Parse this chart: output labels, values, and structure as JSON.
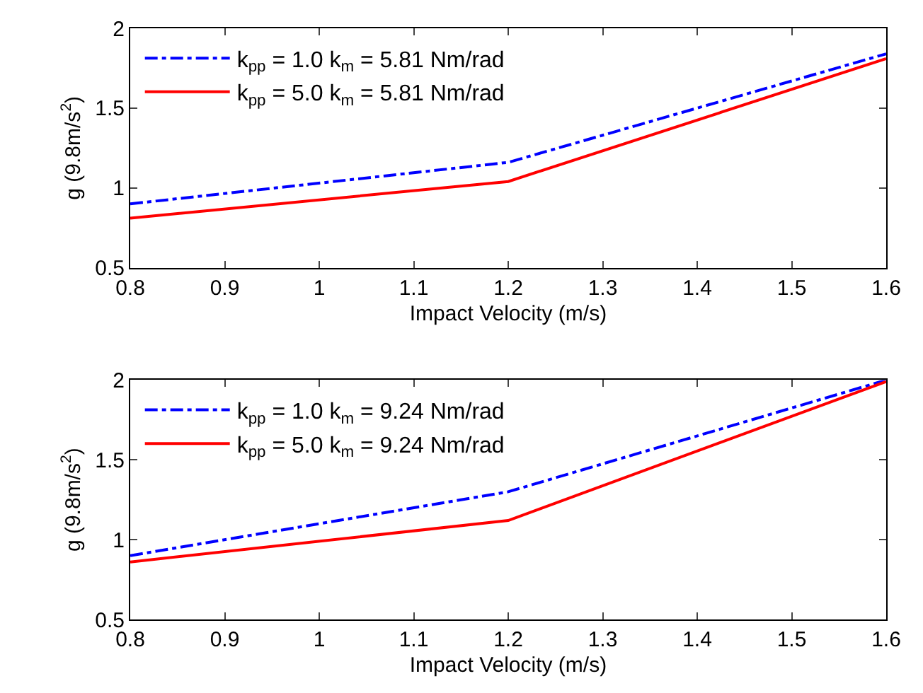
{
  "chart_data": [
    {
      "type": "line",
      "xlabel": "Impact Velocity (m/s)",
      "ylabel": "g (9.8m/s$^{2}$)",
      "x": [
        0.8,
        1.2,
        1.6
      ],
      "xlim": [
        0.8,
        1.6
      ],
      "xticks": [
        0.8,
        0.9,
        1,
        1.1,
        1.2,
        1.3,
        1.4,
        1.5,
        1.6
      ],
      "ylim": [
        0.5,
        2
      ],
      "yticks": [
        0.5,
        1,
        1.5,
        2
      ],
      "grid": false,
      "legend": "top left",
      "marker": "none",
      "series": [
        {
          "name": "k$_{pp}$ = 1.0 k$_{m}$ = 5.81 Nm/rad",
          "color": "#0000ff",
          "line_style": "dashdot",
          "values": [
            0.9,
            1.16,
            1.84
          ]
        },
        {
          "name": "k$_{pp}$ = 5.0 k$_{m}$ = 5.81 Nm/rad",
          "color": "#ff0000",
          "line_style": "solid",
          "values": [
            0.81,
            1.04,
            1.81
          ]
        }
      ]
    },
    {
      "type": "line",
      "xlabel": "Impact Velocity (m/s)",
      "ylabel": "g (9.8m/s$^{2}$)",
      "x": [
        0.8,
        1.2,
        1.6
      ],
      "xlim": [
        0.8,
        1.6
      ],
      "xticks": [
        0.8,
        0.9,
        1,
        1.1,
        1.2,
        1.3,
        1.4,
        1.5,
        1.6
      ],
      "ylim": [
        0.5,
        2
      ],
      "yticks": [
        0.5,
        1,
        1.5,
        2
      ],
      "grid": false,
      "legend": "top left",
      "marker": "none",
      "series": [
        {
          "name": "k$_{pp}$ = 1.0 k$_{m}$ = 9.24 Nm/rad",
          "color": "#0000ff",
          "line_style": "dashdot",
          "values": [
            0.9,
            1.3,
            2.0
          ]
        },
        {
          "name": "k$_{pp}$ = 5.0 k$_{m}$ = 9.24 Nm/rad",
          "color": "#ff0000",
          "line_style": "solid",
          "values": [
            0.86,
            1.12,
            1.99
          ]
        }
      ]
    }
  ]
}
